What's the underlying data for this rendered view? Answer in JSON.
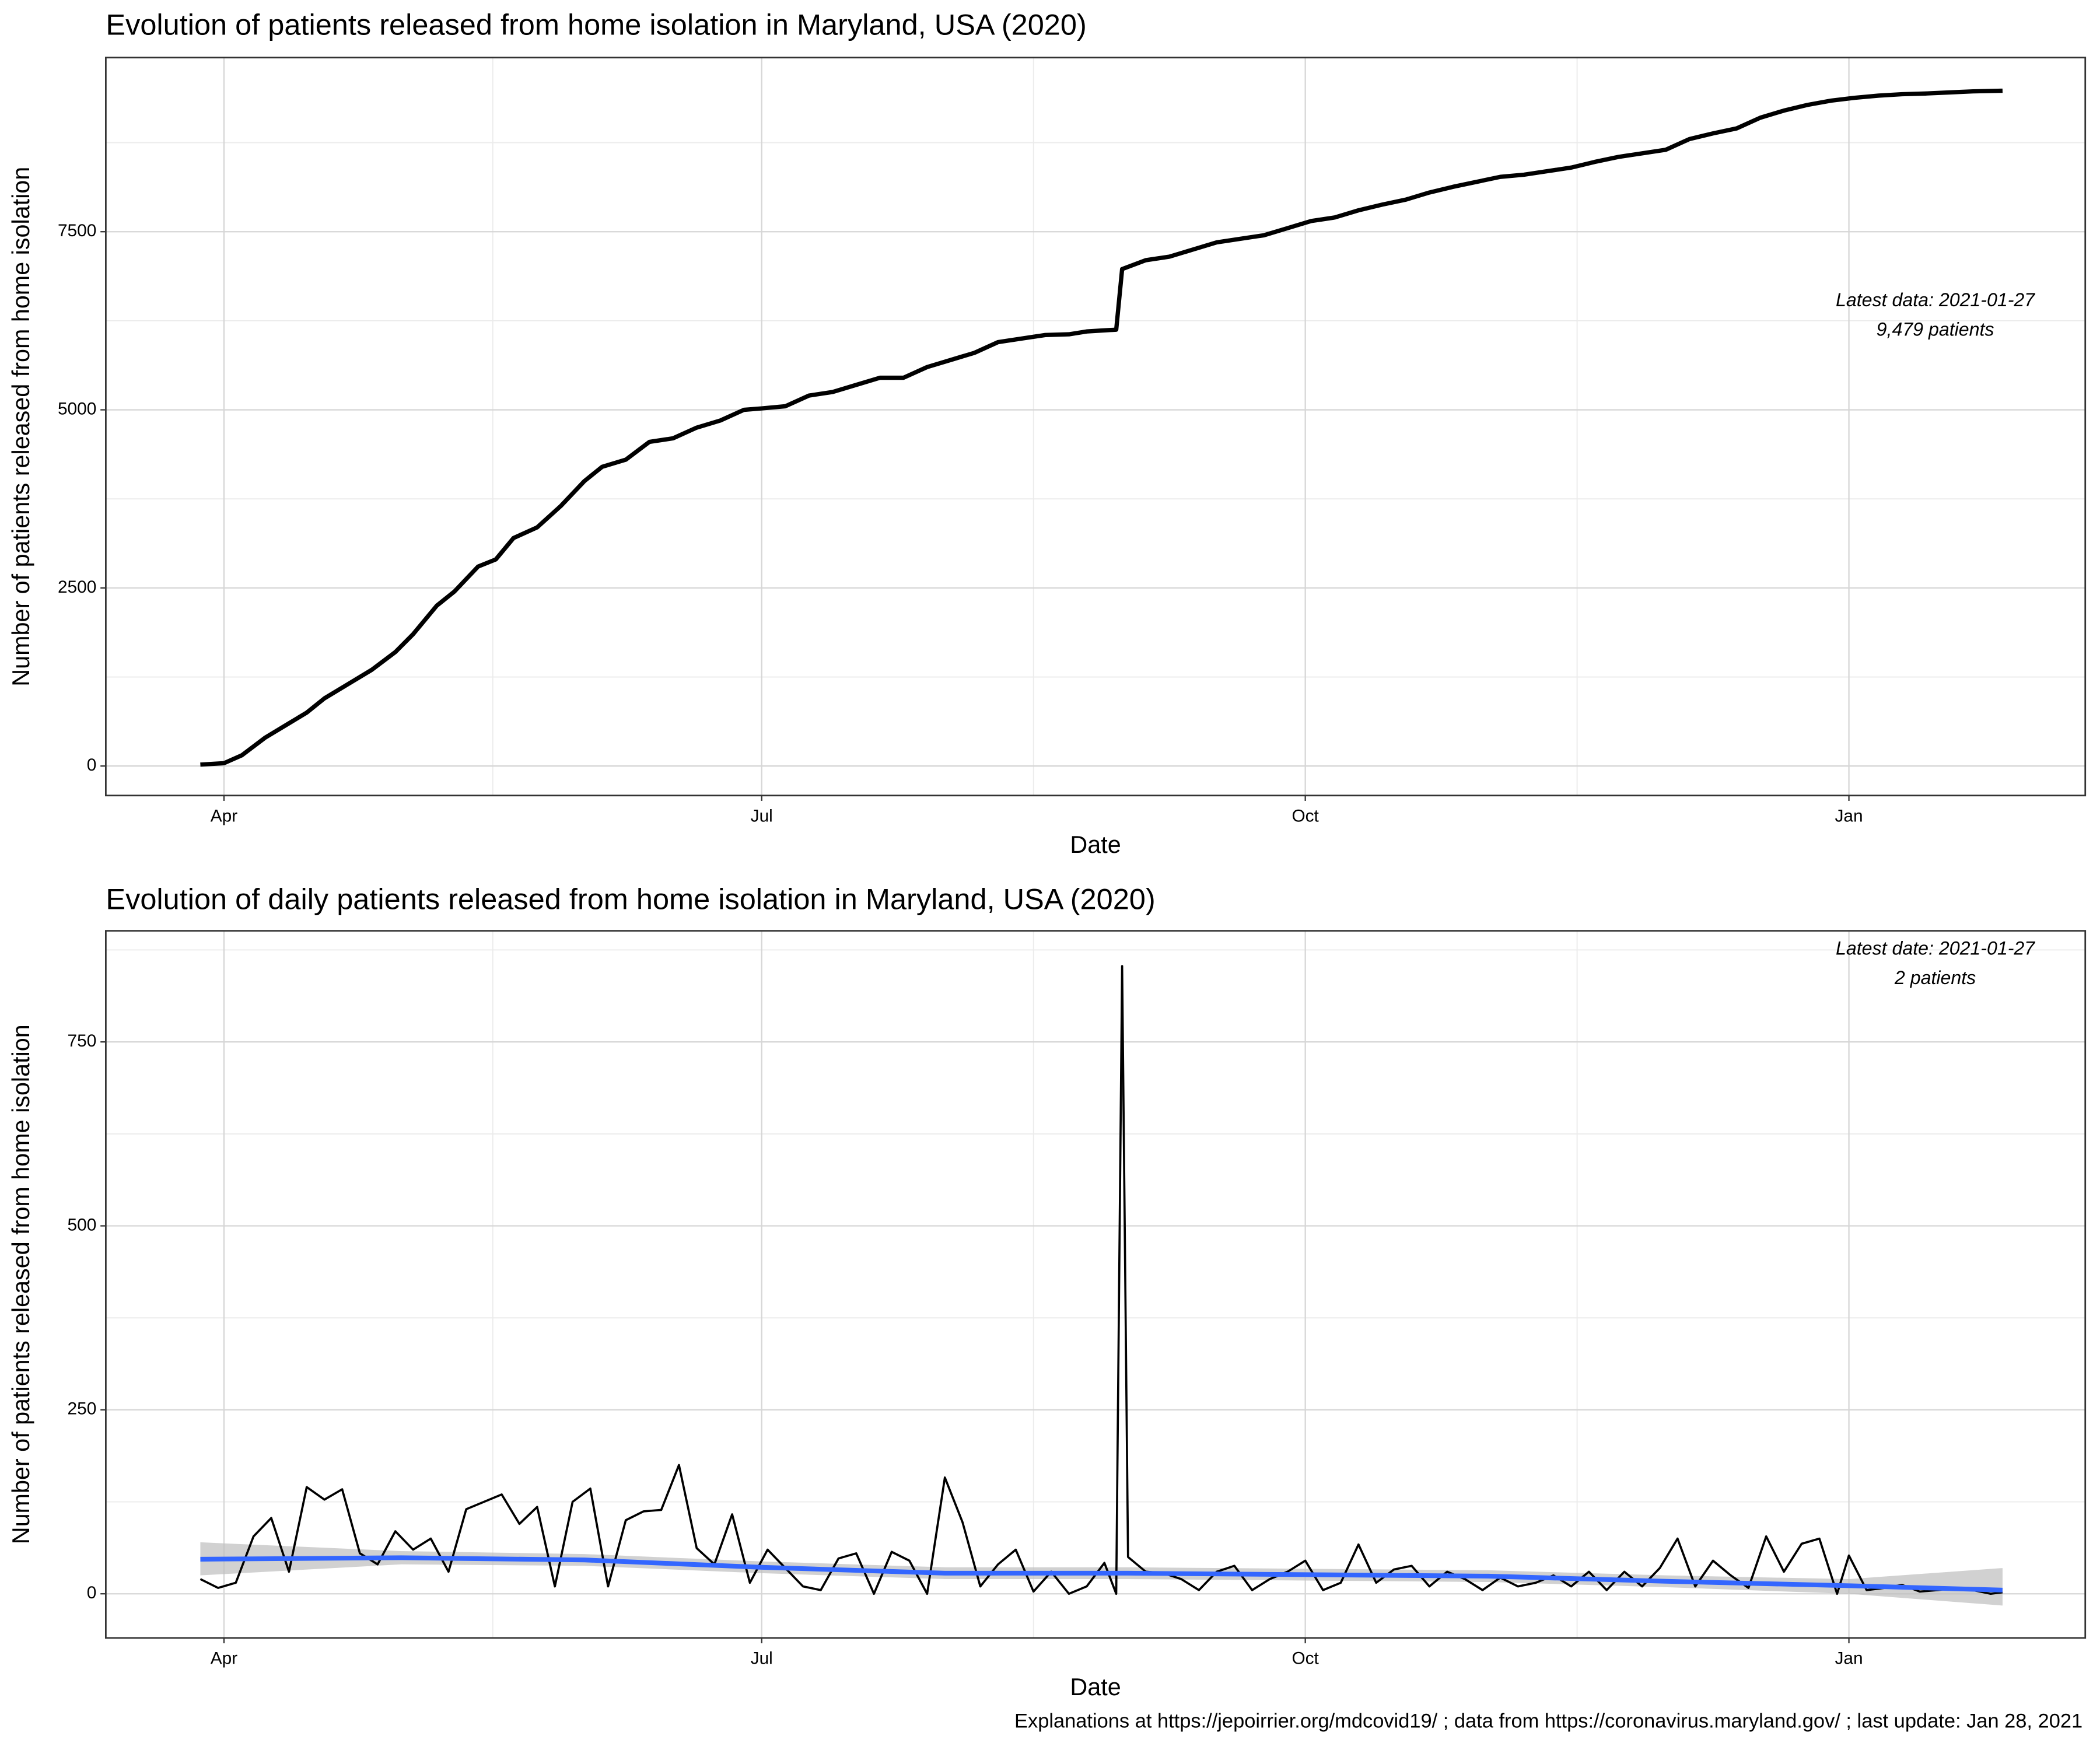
{
  "chart_data": [
    {
      "type": "line",
      "title": "Evolution of patients released from home isolation in Maryland, USA (2020)",
      "x_label": "Date",
      "y_label": "Number of patients released from home isolation",
      "annotations": [
        "Latest data: 2021-01-27",
        "9,479 patients"
      ],
      "color": "#000000",
      "grid": true,
      "xlim": [
        "2020-03-12",
        "2021-02-10"
      ],
      "xticks": [
        {
          "value": "2020-04-01",
          "label": "Apr"
        },
        {
          "value": "2020-07-01",
          "label": "Jul"
        },
        {
          "value": "2020-10-01",
          "label": "Oct"
        },
        {
          "value": "2021-01-01",
          "label": "Jan"
        }
      ],
      "ylim": [
        -414,
        9944
      ],
      "yticks": [
        0,
        2500,
        5000,
        7500
      ],
      "x": [
        "2020-03-28",
        "2020-04-01",
        "2020-04-04",
        "2020-04-08",
        "2020-04-12",
        "2020-04-15",
        "2020-04-18",
        "2020-04-22",
        "2020-04-26",
        "2020-04-30",
        "2020-05-03",
        "2020-05-07",
        "2020-05-10",
        "2020-05-14",
        "2020-05-17",
        "2020-05-20",
        "2020-05-24",
        "2020-05-28",
        "2020-06-01",
        "2020-06-04",
        "2020-06-08",
        "2020-06-12",
        "2020-06-16",
        "2020-06-20",
        "2020-06-24",
        "2020-06-28",
        "2020-07-01",
        "2020-07-05",
        "2020-07-09",
        "2020-07-13",
        "2020-07-17",
        "2020-07-21",
        "2020-07-25",
        "2020-07-29",
        "2020-08-02",
        "2020-08-06",
        "2020-08-10",
        "2020-08-14",
        "2020-08-18",
        "2020-08-22",
        "2020-08-25",
        "2020-08-30",
        "2020-08-31",
        "2020-09-04",
        "2020-09-08",
        "2020-09-12",
        "2020-09-16",
        "2020-09-20",
        "2020-09-24",
        "2020-09-28",
        "2020-10-02",
        "2020-10-06",
        "2020-10-10",
        "2020-10-14",
        "2020-10-18",
        "2020-10-22",
        "2020-10-26",
        "2020-10-30",
        "2020-11-03",
        "2020-11-07",
        "2020-11-11",
        "2020-11-15",
        "2020-11-19",
        "2020-11-23",
        "2020-11-27",
        "2020-12-01",
        "2020-12-05",
        "2020-12-09",
        "2020-12-13",
        "2020-12-17",
        "2020-12-21",
        "2020-12-25",
        "2020-12-29",
        "2021-01-02",
        "2021-01-06",
        "2021-01-10",
        "2021-01-14",
        "2021-01-18",
        "2021-01-22",
        "2021-01-27"
      ],
      "values": [
        20,
        40,
        150,
        400,
        600,
        750,
        950,
        1150,
        1350,
        1600,
        1850,
        2250,
        2450,
        2800,
        2900,
        3200,
        3350,
        3650,
        4000,
        4200,
        4300,
        4550,
        4600,
        4750,
        4850,
        5000,
        5020,
        5050,
        5200,
        5250,
        5350,
        5450,
        5450,
        5600,
        5700,
        5800,
        5950,
        6000,
        6050,
        6060,
        6100,
        6125,
        6975,
        7100,
        7150,
        7250,
        7350,
        7400,
        7450,
        7550,
        7650,
        7700,
        7800,
        7880,
        7950,
        8050,
        8130,
        8200,
        8270,
        8300,
        8350,
        8400,
        8480,
        8550,
        8600,
        8650,
        8800,
        8880,
        8950,
        9100,
        9200,
        9280,
        9340,
        9380,
        9410,
        9430,
        9440,
        9455,
        9470,
        9479
      ]
    },
    {
      "type": "line",
      "title": "Evolution of daily patients released from home isolation in Maryland, USA (2020)",
      "x_label": "Date",
      "y_label": "Number of patients released from home isolation",
      "annotations": [
        "Latest date: 2021-01-27",
        "2 patients"
      ],
      "color": "#000000",
      "grid": true,
      "xlim": [
        "2020-03-12",
        "2021-02-10"
      ],
      "xticks": [
        {
          "value": "2020-04-01",
          "label": "Apr"
        },
        {
          "value": "2020-07-01",
          "label": "Jul"
        },
        {
          "value": "2020-10-01",
          "label": "Oct"
        },
        {
          "value": "2021-01-01",
          "label": "Jan"
        }
      ],
      "ylim": [
        -60,
        901
      ],
      "yticks": [
        0,
        250,
        500,
        750
      ],
      "x": [
        "2020-03-28",
        "2020-03-31",
        "2020-04-03",
        "2020-04-06",
        "2020-04-09",
        "2020-04-12",
        "2020-04-15",
        "2020-04-18",
        "2020-04-21",
        "2020-04-24",
        "2020-04-27",
        "2020-04-30",
        "2020-05-03",
        "2020-05-06",
        "2020-05-09",
        "2020-05-12",
        "2020-05-15",
        "2020-05-18",
        "2020-05-21",
        "2020-05-24",
        "2020-05-27",
        "2020-05-30",
        "2020-06-02",
        "2020-06-05",
        "2020-06-08",
        "2020-06-11",
        "2020-06-14",
        "2020-06-17",
        "2020-06-20",
        "2020-06-23",
        "2020-06-26",
        "2020-06-29",
        "2020-07-02",
        "2020-07-05",
        "2020-07-08",
        "2020-07-11",
        "2020-07-14",
        "2020-07-17",
        "2020-07-20",
        "2020-07-23",
        "2020-07-26",
        "2020-07-29",
        "2020-08-01",
        "2020-08-04",
        "2020-08-07",
        "2020-08-10",
        "2020-08-13",
        "2020-08-16",
        "2020-08-19",
        "2020-08-22",
        "2020-08-25",
        "2020-08-28",
        "2020-08-30",
        "2020-08-31",
        "2020-09-01",
        "2020-09-04",
        "2020-09-07",
        "2020-09-10",
        "2020-09-13",
        "2020-09-16",
        "2020-09-19",
        "2020-09-22",
        "2020-09-25",
        "2020-09-28",
        "2020-10-01",
        "2020-10-04",
        "2020-10-07",
        "2020-10-10",
        "2020-10-13",
        "2020-10-16",
        "2020-10-19",
        "2020-10-22",
        "2020-10-25",
        "2020-10-28",
        "2020-10-31",
        "2020-11-03",
        "2020-11-06",
        "2020-11-09",
        "2020-11-12",
        "2020-11-15",
        "2020-11-18",
        "2020-11-21",
        "2020-11-24",
        "2020-11-27",
        "2020-11-30",
        "2020-12-03",
        "2020-12-06",
        "2020-12-09",
        "2020-12-12",
        "2020-12-15",
        "2020-12-18",
        "2020-12-21",
        "2020-12-24",
        "2020-12-27",
        "2020-12-30",
        "2021-01-01",
        "2021-01-04",
        "2021-01-07",
        "2021-01-10",
        "2021-01-13",
        "2021-01-16",
        "2021-01-19",
        "2021-01-22",
        "2021-01-25",
        "2021-01-27"
      ],
      "values": [
        20,
        8,
        15,
        78,
        103,
        30,
        145,
        128,
        142,
        55,
        40,
        85,
        60,
        75,
        30,
        115,
        125,
        135,
        95,
        118,
        10,
        125,
        143,
        10,
        100,
        112,
        114,
        175,
        62,
        40,
        108,
        15,
        60,
        35,
        10,
        5,
        48,
        55,
        0,
        57,
        45,
        0,
        158,
        97,
        10,
        40,
        60,
        3,
        30,
        0,
        10,
        42,
        0,
        853,
        50,
        30,
        28,
        20,
        5,
        30,
        38,
        5,
        20,
        30,
        45,
        5,
        15,
        67,
        15,
        33,
        38,
        10,
        30,
        20,
        5,
        22,
        10,
        15,
        25,
        10,
        30,
        5,
        30,
        10,
        35,
        75,
        10,
        45,
        25,
        8,
        78,
        30,
        68,
        75,
        0,
        52,
        5,
        8,
        12,
        3,
        5,
        8,
        5,
        0,
        2
      ],
      "smooth": {
        "color": "#3366ff",
        "band_color": "#bdbdbd",
        "x": [
          "2020-03-28",
          "2020-05-01",
          "2020-06-01",
          "2020-07-01",
          "2020-08-01",
          "2020-09-01",
          "2020-10-01",
          "2020-11-01",
          "2020-12-01",
          "2021-01-01",
          "2021-01-27"
        ],
        "values": [
          47,
          49,
          46,
          36,
          28,
          28,
          26,
          24,
          17,
          11,
          5
        ],
        "lower": [
          25,
          40,
          38,
          28,
          20,
          20,
          18,
          16,
          9,
          0,
          -16
        ],
        "upper": [
          70,
          58,
          54,
          44,
          36,
          36,
          34,
          32,
          25,
          20,
          35
        ]
      }
    }
  ],
  "caption": "Explanations at https://jepoirrier.org/mdcovid19/ ; data from https://coronavirus.maryland.gov/ ; last update: Jan 28, 2021"
}
